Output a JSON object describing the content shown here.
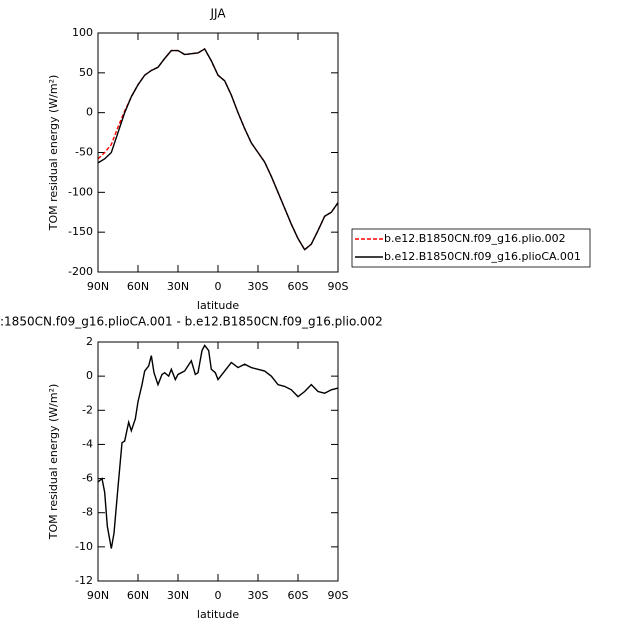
{
  "chart_data": [
    {
      "type": "line",
      "title": "JJA",
      "xlabel": "latitude",
      "ylabel": "TOM residual energy (W/m²)",
      "x": [
        90,
        85,
        80,
        75,
        70,
        65,
        60,
        55,
        50,
        45,
        40,
        35,
        30,
        25,
        20,
        15,
        10,
        5,
        0,
        -5,
        -10,
        -15,
        -20,
        -25,
        -30,
        -35,
        -40,
        -45,
        -50,
        -55,
        -60,
        -65,
        -70,
        -75,
        -80,
        -85,
        -90
      ],
      "series": [
        {
          "name": "b.e12.B1850CN.f09_g16.plio.002",
          "color": "#ff0000",
          "style": "dashed",
          "values": [
            -58,
            -50,
            -40,
            -18,
            2,
            20,
            35,
            47,
            53,
            57,
            68,
            78,
            78,
            73,
            74,
            75,
            80,
            65,
            47,
            40,
            22,
            0,
            -20,
            -38,
            -50,
            -62,
            -80,
            -100,
            -120,
            -140,
            -158,
            -172,
            -165,
            -148,
            -130,
            -125,
            -113
          ]
        },
        {
          "name": "b.e12.B1850CN.f09_g16.plioCA.001",
          "color": "#000000",
          "style": "solid",
          "values": [
            -63,
            -58,
            -50,
            -25,
            0,
            20,
            35,
            47,
            53,
            57,
            68,
            78,
            78,
            73,
            74,
            75,
            80,
            65,
            47,
            40,
            22,
            0,
            -20,
            -38,
            -50,
            -62,
            -80,
            -100,
            -120,
            -140,
            -158,
            -172,
            -165,
            -148,
            -130,
            -125,
            -113
          ]
        }
      ],
      "xlim": [
        90,
        -90
      ],
      "xticks": [
        {
          "value": 90,
          "label": "90N"
        },
        {
          "value": 60,
          "label": "60N"
        },
        {
          "value": 30,
          "label": "30N"
        },
        0,
        {
          "value": -30,
          "label": "30S"
        },
        {
          "value": -60,
          "label": "60S"
        },
        {
          "value": -90,
          "label": "90S"
        }
      ],
      "ylim": [
        -200,
        100
      ],
      "yticks": [
        100,
        50,
        0,
        -50,
        -100,
        -150,
        -200
      ],
      "legend": "right"
    },
    {
      "type": "line",
      "title": ":1850CN.f09_g16.plioCA.001 - b.e12.B1850CN.f09_g16.plio.002",
      "xlabel": "latitude",
      "ylabel": "TOM residual energy (W/m²)",
      "x": [
        90,
        87,
        85,
        83,
        80,
        78,
        75,
        72,
        70,
        67,
        65,
        62,
        60,
        57,
        55,
        52,
        50,
        48,
        45,
        42,
        40,
        37,
        35,
        32,
        30,
        25,
        20,
        17,
        15,
        12,
        10,
        7,
        5,
        2,
        0,
        -5,
        -10,
        -15,
        -20,
        -25,
        -30,
        -35,
        -40,
        -45,
        -50,
        -55,
        -60,
        -65,
        -70,
        -75,
        -80,
        -85,
        -90
      ],
      "series": [
        {
          "color": "#000000",
          "style": "solid",
          "values": [
            -6.2,
            -6,
            -6.8,
            -8.8,
            -10.1,
            -9.2,
            -6.5,
            -3.9,
            -3.8,
            -2.7,
            -3.2,
            -2.5,
            -1.5,
            -0.5,
            0.3,
            0.6,
            1.2,
            0.2,
            -0.5,
            0.1,
            0.2,
            0,
            0.4,
            -0.2,
            0.1,
            0.3,
            0.9,
            0.1,
            0.2,
            1.5,
            1.8,
            1.5,
            0.4,
            0.2,
            -0.2,
            0.3,
            0.8,
            0.5,
            0.7,
            0.5,
            0.4,
            0.3,
            0,
            -0.5,
            -0.6,
            -0.8,
            -1.2,
            -0.9,
            -0.5,
            -0.9,
            -1,
            -0.8,
            -0.7
          ]
        }
      ],
      "xlim": [
        90,
        -90
      ],
      "xticks": [
        {
          "value": 90,
          "label": "90N"
        },
        {
          "value": 60,
          "label": "60N"
        },
        {
          "value": 30,
          "label": "30N"
        },
        0,
        {
          "value": -30,
          "label": "30S"
        },
        {
          "value": -60,
          "label": "60S"
        },
        {
          "value": -90,
          "label": "90S"
        }
      ],
      "ylim": [
        -12,
        2
      ],
      "yticks": [
        2,
        0,
        -2,
        -4,
        -6,
        -8,
        -10,
        -12
      ]
    }
  ]
}
